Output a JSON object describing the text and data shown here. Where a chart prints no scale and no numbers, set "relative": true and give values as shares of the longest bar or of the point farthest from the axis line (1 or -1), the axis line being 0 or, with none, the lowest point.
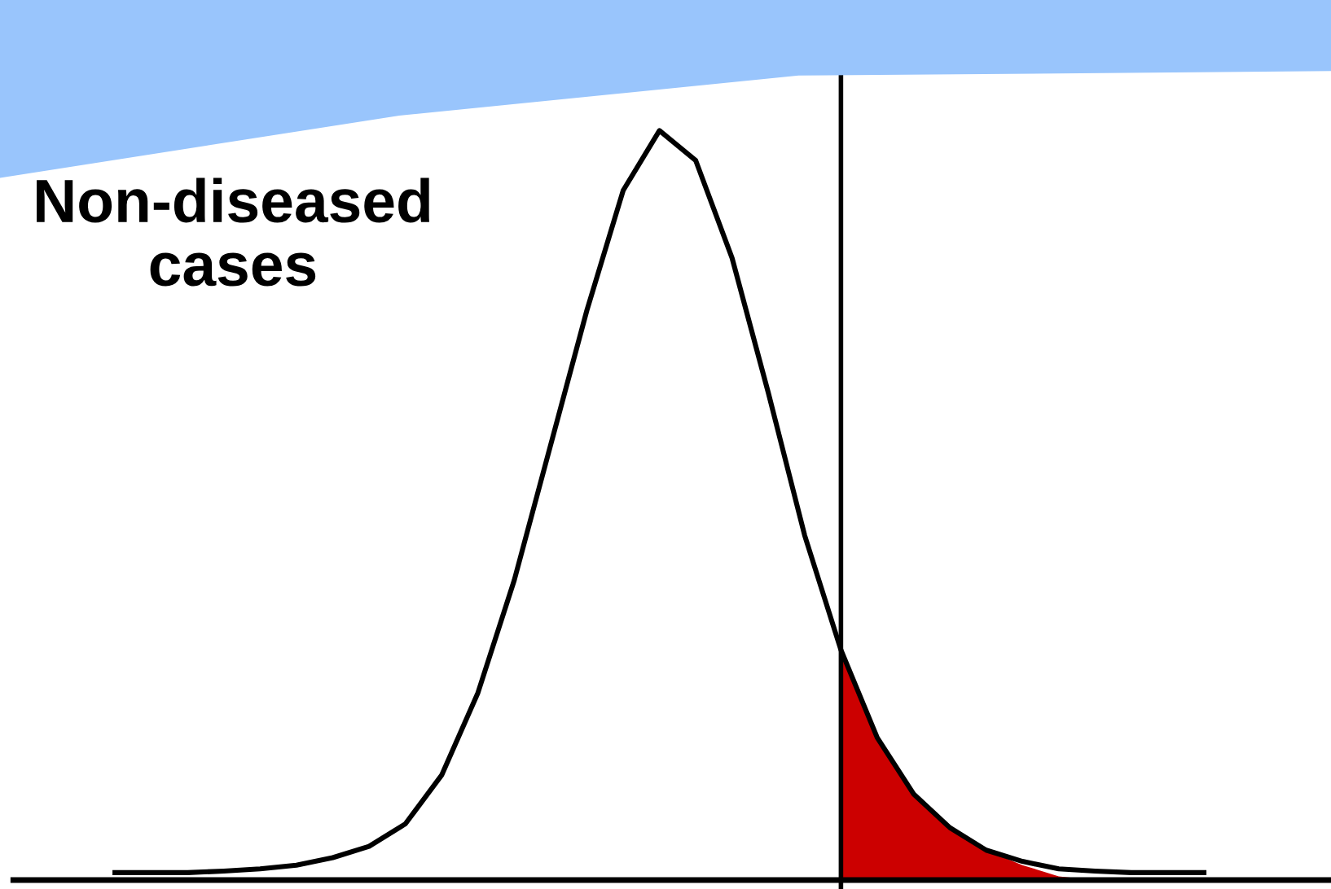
{
  "chart_data": {
    "type": "line",
    "relative": true,
    "marker": "none",
    "line_style": "solid",
    "categories": [
      null,
      null,
      null,
      null,
      null,
      null,
      null,
      null,
      null,
      null,
      null,
      null,
      null,
      null,
      null,
      null,
      null,
      null,
      null,
      null,
      null,
      null,
      null,
      null,
      null,
      null,
      null,
      null,
      null,
      null,
      null
    ],
    "series": [
      {
        "color": "#000000",
        "values": [
          0.01,
          0.01,
          0.01,
          0.012,
          0.015,
          0.02,
          0.03,
          0.045,
          0.075,
          0.14,
          0.25,
          0.4,
          0.58,
          0.76,
          0.92,
          1.0,
          0.96,
          0.83,
          0.65,
          0.46,
          0.307,
          0.19,
          0.115,
          0.07,
          0.04,
          0.025,
          0.015,
          0.012,
          0.01,
          0.01,
          0.01
        ]
      },
      {
        "type": "area",
        "color": "#cc0000",
        "values": [
          null,
          null,
          null,
          null,
          null,
          null,
          null,
          null,
          null,
          null,
          null,
          null,
          null,
          null,
          null,
          null,
          null,
          null,
          null,
          null,
          0.307,
          0.19,
          0.115,
          0.07,
          0.04,
          0.02,
          0.005,
          0,
          0,
          0,
          0
        ]
      }
    ],
    "annotations": [
      "Non-diseased\ncases"
    ]
  }
}
